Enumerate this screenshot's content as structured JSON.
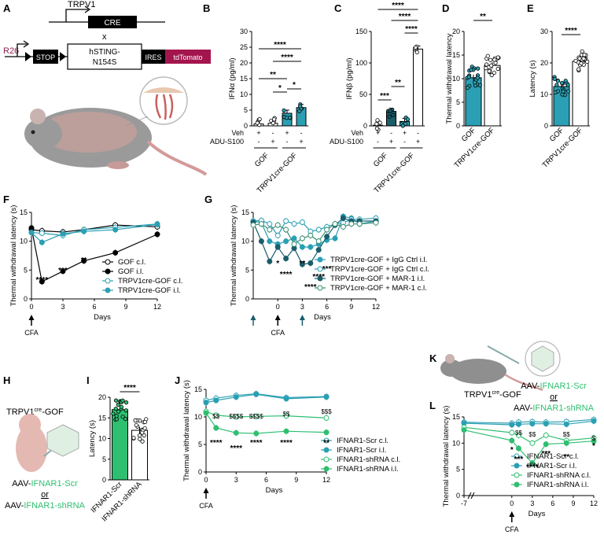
{
  "figure": {
    "panel_letters": [
      "A",
      "B",
      "C",
      "D",
      "E",
      "F",
      "G",
      "H",
      "I",
      "J",
      "K",
      "L"
    ],
    "colors": {
      "teal": "#2b9fb3",
      "dark_teal": "#1a5d6b",
      "green": "#2fbf71",
      "open": "#ffffff",
      "black": "#000000",
      "tdtomato": "#a3164d",
      "r26": "#8e1f4f",
      "ifnar_green": "#2fbf71"
    }
  },
  "panel_a": {
    "trpv1_label": "TRPV1",
    "cre_label": "CRE",
    "cross_label": "x",
    "r26_label": "R26",
    "stop_label": "STOP",
    "sting_label_1": "hSTING-",
    "sting_label_2": "N154S",
    "ires_label": "IRES",
    "tdtomato_label": "tdTomato"
  },
  "panel_h": {
    "mouse_label_pre": "TRPV1",
    "mouse_label_sup": "cre",
    "mouse_label_post": "-GOF",
    "aav1_pre": "AAV-",
    "aav1_green": "IFNAR1-Scr",
    "or_label": "or",
    "aav2_pre": "AAV-",
    "aav2_green": "IFNAR1-shRNA"
  },
  "panel_k": {
    "aav1_pre": "AAV-",
    "aav1_green": "IFNAR1-Scr",
    "or_label": "or",
    "aav2_pre": "AAV-",
    "aav2_green": "IFNAR1-shRNA",
    "mouse_label_pre": "TRPV1",
    "mouse_label_sup": "cre",
    "mouse_label_post": "-GOF"
  },
  "chart_data": [
    {
      "panel": "B",
      "type": "bar",
      "ylabel": "IFNα (pg/ml)",
      "ylim": [
        0,
        30
      ],
      "yticks": [
        0,
        5,
        10,
        15,
        20,
        25,
        30
      ],
      "categories": [
        "GOF Veh",
        "GOF ADU-S100",
        "TRPV1cre-GOF Veh",
        "TRPV1cre-GOF ADU-S100"
      ],
      "values": [
        0.6,
        0.8,
        4.0,
        5.8
      ],
      "row_labels": [
        "Veh",
        "ADU-S100"
      ],
      "signs": {
        "veh": [
          "+",
          "-",
          "+",
          "-"
        ],
        "adu": [
          "-",
          "+",
          "-",
          "+"
        ]
      },
      "group_labels": [
        "GOF",
        "TRPV1cre-GOF"
      ],
      "significance": [
        "****",
        "****",
        "**",
        "*",
        "*"
      ]
    },
    {
      "panel": "C",
      "type": "bar",
      "ylabel": "IFNβ (pg/ml)",
      "ylim": [
        0,
        150
      ],
      "yticks": [
        0,
        50,
        100,
        150
      ],
      "categories": [
        "GOF Veh",
        "GOF ADU-S100",
        "TRPV1cre-GOF Veh",
        "TRPV1cre-GOF ADU-S100"
      ],
      "values": [
        1,
        23,
        7,
        122
      ],
      "row_labels": [
        "Veh",
        "ADU-S100"
      ],
      "signs": {
        "veh": [
          "+",
          "-",
          "+",
          "-"
        ],
        "adu": [
          "-",
          "+",
          "-",
          "+"
        ]
      },
      "group_labels": [
        "GOF",
        "TRPV1cre-GOF"
      ],
      "significance": [
        "****",
        "****",
        "****",
        "***",
        "**"
      ]
    },
    {
      "panel": "D",
      "type": "bar",
      "ylabel": "Thermal withdrawal latency",
      "ylim": [
        0,
        20
      ],
      "yticks": [
        0,
        5,
        10,
        15,
        20
      ],
      "categories": [
        "GOF",
        "TRPV1cre-GOF"
      ],
      "values": [
        10.2,
        12.8
      ],
      "significance": [
        "**"
      ]
    },
    {
      "panel": "E",
      "type": "bar",
      "ylabel": "Latency (s)",
      "ylim": [
        0,
        30
      ],
      "yticks": [
        0,
        10,
        20,
        30
      ],
      "categories": [
        "GOF",
        "TRPV1cre-GOF"
      ],
      "values": [
        12.5,
        20.5
      ],
      "significance": [
        "****"
      ]
    },
    {
      "panel": "F",
      "type": "line",
      "ylabel": "Thermal withdrawal latency (s)",
      "xlabel": "Days",
      "xlim": [
        0,
        12
      ],
      "ylim": [
        0,
        15
      ],
      "xticks": [
        0,
        3,
        6,
        9,
        12
      ],
      "yticks": [
        0,
        5,
        10,
        15
      ],
      "x": [
        0,
        1,
        3,
        5,
        8,
        12
      ],
      "series": [
        {
          "name": "GOF c.l.",
          "values": [
            12.0,
            11.8,
            11.6,
            12.0,
            12.8,
            12.5
          ]
        },
        {
          "name": "GOF i.l.",
          "values": [
            12.3,
            3.0,
            4.8,
            6.6,
            8.0,
            11.2
          ]
        },
        {
          "name": "TRPV1cre-GOF c.l.",
          "values": [
            11.5,
            11.4,
            11.0,
            12.0,
            12.4,
            13.0
          ]
        },
        {
          "name": "TRPV1cre-GOF i.l.",
          "values": [
            11.5,
            9.8,
            11.3,
            11.7,
            12.0,
            12.9
          ]
        }
      ],
      "annotations": [
        "****",
        "***",
        "**"
      ],
      "event_label": "CFA"
    },
    {
      "panel": "G",
      "type": "line",
      "ylabel": "Thermal withdrawal latency (s)",
      "xlabel": "Days",
      "xlim": [
        -3,
        12
      ],
      "ylim": [
        0,
        15
      ],
      "xticks": [
        0,
        3,
        6,
        9,
        12
      ],
      "yticks": [
        0,
        5,
        10,
        15
      ],
      "x": [
        -3,
        -2,
        -1,
        0,
        1,
        2,
        3,
        4,
        5,
        6,
        7,
        8,
        9,
        10,
        12
      ],
      "series": [
        {
          "name": "TRPV1cre-GOF + IgG Ctrl i.l.",
          "values": [
            13.5,
            13.2,
            10.0,
            9.5,
            10.0,
            10.5,
            9.0,
            9.0,
            9.5,
            10.2,
            10.5,
            14.3,
            14.0,
            13.0,
            13.5
          ]
        },
        {
          "name": "TRPV1cre-GOF + IgG Ctrl c.l.",
          "values": [
            13.5,
            13.6,
            13.0,
            11.0,
            13.5,
            13.0,
            13.3,
            11.7,
            12.0,
            12.5,
            13.0,
            13.2,
            13.8,
            13.8,
            14.0
          ]
        },
        {
          "name": "TRPV1cre-GOF + MAR-1 i.l.",
          "values": [
            13.3,
            10.0,
            6.5,
            9.0,
            7.0,
            8.8,
            6.0,
            6.2,
            8.5,
            10.8,
            12.8,
            14.0,
            13.5,
            13.5,
            13.5
          ]
        },
        {
          "name": "TRPV1cre-GOF + MAR-1 c.l.",
          "values": [
            12.8,
            13.0,
            12.0,
            12.8,
            12.0,
            9.5,
            10.5,
            11.0,
            10.0,
            12.0,
            13.0,
            12.5,
            13.0,
            13.0,
            13.2
          ]
        }
      ],
      "annotations": [
        "*",
        "****",
        "**",
        "****",
        "****",
        "***"
      ],
      "event_label": "CFA"
    },
    {
      "panel": "I",
      "type": "bar",
      "ylabel": "Latency (s)",
      "ylim": [
        0,
        20
      ],
      "yticks": [
        0,
        5,
        10,
        15,
        20
      ],
      "categories": [
        "IFNAR1-Scr",
        "IFNAR1-shRNA"
      ],
      "values": [
        17.0,
        12.0
      ],
      "significance": [
        "****"
      ]
    },
    {
      "panel": "J",
      "type": "line",
      "ylabel": "Thermal withdrawal latency (s)",
      "xlabel": "Days",
      "xlim": [
        0,
        12
      ],
      "ylim": [
        0,
        15
      ],
      "xticks": [
        0,
        3,
        6,
        9,
        12
      ],
      "yticks": [
        0,
        5,
        10,
        15
      ],
      "x": [
        0,
        1,
        3,
        5,
        8,
        12
      ],
      "series": [
        {
          "name": "IFNAR1-Scr c.l.",
          "values": [
            13.0,
            13.4,
            13.9,
            14.2,
            13.5,
            13.7
          ]
        },
        {
          "name": "IFNAR1-Scr i.l.",
          "values": [
            12.6,
            13.0,
            13.6,
            14.1,
            13.3,
            13.6
          ]
        },
        {
          "name": "IFNAR1-shRNA c.l.",
          "values": [
            11.0,
            10.3,
            10.0,
            10.1,
            10.2,
            9.8
          ]
        },
        {
          "name": "IFNAR1-shRNA i.l.",
          "values": [
            10.7,
            8.0,
            7.1,
            7.0,
            7.4,
            7.2
          ]
        }
      ],
      "annotations": [
        "****",
        "****",
        "****",
        "****",
        "**"
      ],
      "dollar_annotations": [
        "$$",
        "$$$$",
        "$$$$",
        "$$",
        "$$$"
      ],
      "event_label": "CFA"
    },
    {
      "panel": "L",
      "type": "line",
      "ylabel": "Thermal withdrawal latency (s)",
      "xlabel": "Days",
      "xlim": [
        -7,
        12
      ],
      "ylim": [
        0,
        15
      ],
      "xticks": [
        -7,
        0,
        3,
        6,
        9,
        12
      ],
      "yticks": [
        0,
        5,
        10,
        15
      ],
      "x": [
        -7,
        0,
        1,
        3,
        5,
        8,
        12
      ],
      "series": [
        {
          "name": "IFNAR1-Scr c.l.",
          "values": [
            14.0,
            13.8,
            14.0,
            14.1,
            14.0,
            14.1,
            14.5
          ]
        },
        {
          "name": "IFNAR1-Scr i.l.",
          "values": [
            13.8,
            13.5,
            13.6,
            13.7,
            13.7,
            13.6,
            14.2
          ]
        },
        {
          "name": "IFNAR1-shRNA c.l.",
          "values": [
            13.0,
            12.0,
            11.5,
            10.0,
            11.5,
            10.5,
            11.0
          ]
        },
        {
          "name": "IFNAR1-shRNA i.l.",
          "values": [
            12.5,
            10.5,
            9.0,
            6.2,
            9.8,
            10.0,
            10.4
          ]
        }
      ],
      "annotations": [
        "*",
        "***",
        "****",
        "***",
        "**",
        "*"
      ],
      "dollar_annotations": [
        "$$",
        "$$",
        "$$",
        "$"
      ],
      "event_label": "CFA",
      "legend_names": [
        "IFNAR1-Scr c.l.",
        "IFNAR1-Scr i.l.",
        "IFNAR1-shRNA c.l.",
        "IFNAR1-shRNA i.l."
      ]
    }
  ]
}
